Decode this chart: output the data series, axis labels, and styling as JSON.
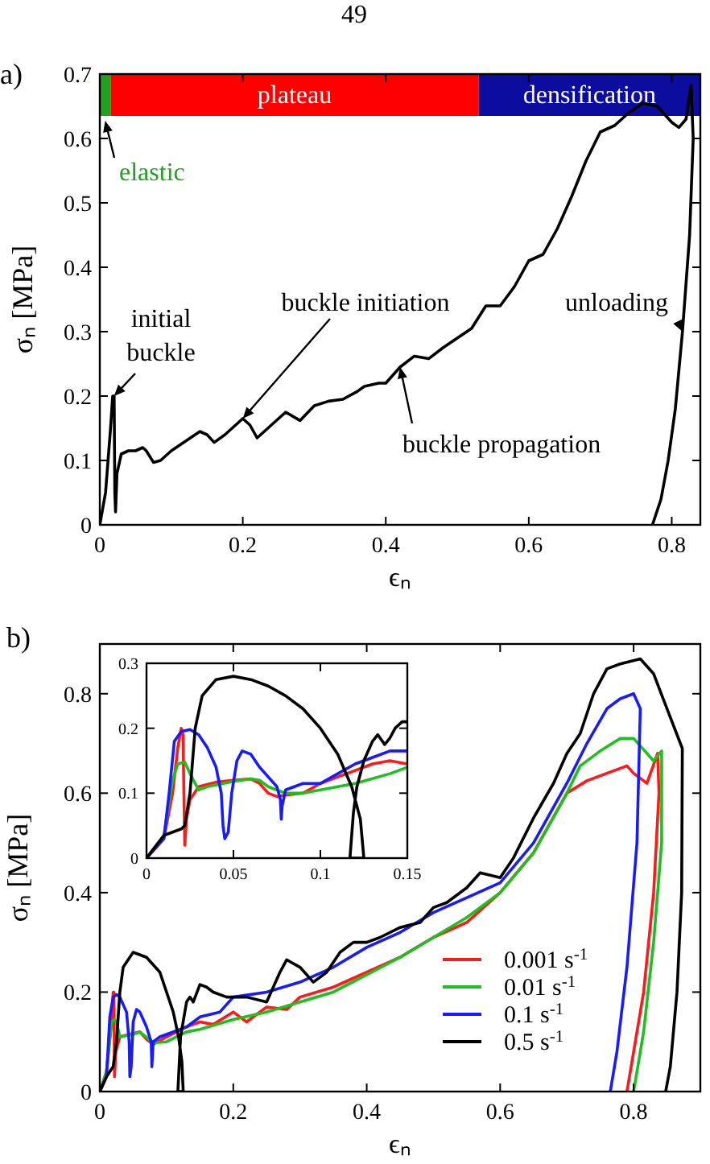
{
  "chart_data": [
    {
      "type": "line",
      "title": "a)",
      "xlabel": "ϵₙ",
      "ylabel": "σₙ [MPa]",
      "xlim": [
        0,
        0.84
      ],
      "ylim": [
        0,
        0.7
      ],
      "xticks": [
        0,
        0.2,
        0.4,
        0.6,
        0.8
      ],
      "yticks": [
        0,
        0.1,
        0.2,
        0.3,
        0.4,
        0.5,
        0.6,
        0.7
      ],
      "grid": false,
      "bands": [
        {
          "axis": "x",
          "from": 0,
          "to": 0.015,
          "label": "elastic",
          "color": "#22a022"
        },
        {
          "axis": "x",
          "from": 0.015,
          "to": 0.53,
          "label": "plateau",
          "color": "#ff0000"
        },
        {
          "axis": "x",
          "from": 0.53,
          "to": 0.84,
          "label": "densification",
          "color": "#0c0c9e"
        }
      ],
      "annotations": [
        {
          "text": "initial buckle",
          "x": 0.02,
          "y": 0.2
        },
        {
          "text": "buckle initiation",
          "x": 0.2,
          "y": 0.165
        },
        {
          "text": "buckle propagation",
          "x": 0.42,
          "y": 0.245
        },
        {
          "text": "unloading",
          "x": 0.815,
          "y": 0.3
        },
        "49"
      ],
      "series": [
        {
          "color": "#000000",
          "x": [
            0,
            0.008,
            0.015,
            0.018,
            0.02,
            0.021,
            0.022,
            0.024,
            0.03,
            0.04,
            0.05,
            0.06,
            0.065,
            0.075,
            0.085,
            0.1,
            0.12,
            0.14,
            0.15,
            0.16,
            0.175,
            0.2,
            0.21,
            0.22,
            0.235,
            0.26,
            0.28,
            0.3,
            0.32,
            0.34,
            0.36,
            0.37,
            0.39,
            0.4,
            0.42,
            0.44,
            0.46,
            0.48,
            0.5,
            0.52,
            0.54,
            0.56,
            0.58,
            0.6,
            0.62,
            0.64,
            0.66,
            0.68,
            0.7,
            0.72,
            0.74,
            0.76,
            0.78,
            0.8,
            0.81,
            0.82,
            0.827,
            0.83,
            0.825,
            0.815,
            0.805,
            0.795,
            0.785,
            0.773
          ],
          "values": [
            0,
            0.05,
            0.15,
            0.2,
            0.2,
            0.05,
            0.02,
            0.08,
            0.11,
            0.115,
            0.115,
            0.12,
            0.115,
            0.097,
            0.1,
            0.115,
            0.13,
            0.145,
            0.14,
            0.128,
            0.14,
            0.165,
            0.155,
            0.135,
            0.15,
            0.175,
            0.162,
            0.185,
            0.192,
            0.195,
            0.207,
            0.215,
            0.22,
            0.22,
            0.245,
            0.262,
            0.258,
            0.275,
            0.29,
            0.305,
            0.34,
            0.34,
            0.37,
            0.41,
            0.42,
            0.46,
            0.51,
            0.565,
            0.61,
            0.62,
            0.64,
            0.655,
            0.65,
            0.625,
            0.617,
            0.63,
            0.683,
            0.6,
            0.45,
            0.3,
            0.18,
            0.1,
            0.04,
            0
          ]
        }
      ]
    },
    {
      "type": "line",
      "title": "b)",
      "xlabel": "ϵₙ",
      "ylabel": "σₙ [MPa]",
      "xlim": [
        0,
        0.9
      ],
      "ylim": [
        0,
        0.9
      ],
      "xticks": [
        0,
        0.2,
        0.4,
        0.6,
        0.8
      ],
      "yticks": [
        0,
        0.2,
        0.4,
        0.6,
        0.8
      ],
      "grid": false,
      "legend": "bottom right",
      "series": [
        {
          "name": "0.001 s$^{-1}$",
          "color": "#ff1a1a",
          "x": [
            0,
            0.01,
            0.018,
            0.02,
            0.021,
            0.022,
            0.024,
            0.03,
            0.05,
            0.06,
            0.07,
            0.08,
            0.1,
            0.13,
            0.15,
            0.17,
            0.2,
            0.22,
            0.25,
            0.28,
            0.3,
            0.35,
            0.4,
            0.45,
            0.5,
            0.55,
            0.6,
            0.65,
            0.7,
            0.73,
            0.76,
            0.79,
            0.8,
            0.82,
            0.836,
            0.838,
            0.83,
            0.815,
            0.8,
            0.79
          ],
          "values": [
            0,
            0.04,
            0.15,
            0.2,
            0.2,
            0.03,
            0.08,
            0.11,
            0.117,
            0.12,
            0.105,
            0.095,
            0.11,
            0.13,
            0.14,
            0.135,
            0.16,
            0.14,
            0.17,
            0.165,
            0.19,
            0.21,
            0.24,
            0.27,
            0.31,
            0.34,
            0.4,
            0.48,
            0.6,
            0.625,
            0.64,
            0.655,
            0.64,
            0.62,
            0.68,
            0.6,
            0.4,
            0.2,
            0.08,
            0
          ]
        },
        {
          "name": "0.01 s$^{-1}$",
          "color": "#1fbf1f",
          "x": [
            0,
            0.01,
            0.018,
            0.022,
            0.025,
            0.03,
            0.05,
            0.06,
            0.08,
            0.1,
            0.13,
            0.15,
            0.2,
            0.25,
            0.3,
            0.35,
            0.4,
            0.45,
            0.5,
            0.55,
            0.6,
            0.65,
            0.7,
            0.72,
            0.75,
            0.78,
            0.8,
            0.82,
            0.83,
            0.842,
            0.842,
            0.83,
            0.815,
            0.8
          ],
          "values": [
            0,
            0.04,
            0.14,
            0.145,
            0.14,
            0.11,
            0.115,
            0.12,
            0.098,
            0.1,
            0.12,
            0.125,
            0.145,
            0.16,
            0.18,
            0.2,
            0.235,
            0.27,
            0.31,
            0.35,
            0.4,
            0.48,
            0.6,
            0.655,
            0.685,
            0.71,
            0.71,
            0.68,
            0.665,
            0.685,
            0.5,
            0.3,
            0.12,
            0
          ]
        },
        {
          "name": "0.1 s$^{-1}$",
          "color": "#1a1aff",
          "x": [
            0,
            0.01,
            0.015,
            0.02,
            0.025,
            0.03,
            0.04,
            0.044,
            0.045,
            0.047,
            0.05,
            0.055,
            0.06,
            0.07,
            0.077,
            0.078,
            0.08,
            0.09,
            0.1,
            0.13,
            0.15,
            0.18,
            0.2,
            0.25,
            0.3,
            0.35,
            0.4,
            0.45,
            0.5,
            0.55,
            0.6,
            0.65,
            0.7,
            0.73,
            0.76,
            0.78,
            0.8,
            0.81,
            0.805,
            0.79,
            0.775,
            0.765
          ],
          "values": [
            0,
            0.03,
            0.15,
            0.19,
            0.195,
            0.19,
            0.16,
            0.1,
            0.03,
            0.05,
            0.14,
            0.165,
            0.16,
            0.13,
            0.1,
            0.05,
            0.1,
            0.11,
            0.115,
            0.13,
            0.15,
            0.16,
            0.19,
            0.2,
            0.22,
            0.25,
            0.29,
            0.32,
            0.36,
            0.39,
            0.42,
            0.5,
            0.62,
            0.7,
            0.77,
            0.79,
            0.8,
            0.77,
            0.5,
            0.25,
            0.08,
            0
          ]
        },
        {
          "name": "0.5 s$^{-1}$",
          "color": "#000000",
          "x": [
            0,
            0.01,
            0.02,
            0.025,
            0.03,
            0.035,
            0.05,
            0.07,
            0.09,
            0.11,
            0.118,
            0.123,
            0.125,
            0.117,
            0.121,
            0.13,
            0.135,
            0.14,
            0.15,
            0.16,
            0.17,
            0.19,
            0.22,
            0.25,
            0.27,
            0.28,
            0.3,
            0.32,
            0.34,
            0.36,
            0.38,
            0.4,
            0.42,
            0.45,
            0.48,
            0.5,
            0.52,
            0.55,
            0.57,
            0.6,
            0.62,
            0.65,
            0.68,
            0.7,
            0.72,
            0.74,
            0.76,
            0.78,
            0.81,
            0.83,
            0.85,
            0.873,
            0.872,
            0.865,
            0.855,
            0.848
          ],
          "values": [
            0,
            0.03,
            0.05,
            0.1,
            0.2,
            0.25,
            0.28,
            0.27,
            0.24,
            0.16,
            0.11,
            0.06,
            0,
            0,
            0.11,
            0.18,
            0.19,
            0.18,
            0.215,
            0.21,
            0.2,
            0.19,
            0.19,
            0.18,
            0.24,
            0.265,
            0.25,
            0.22,
            0.24,
            0.28,
            0.3,
            0.3,
            0.31,
            0.33,
            0.34,
            0.37,
            0.38,
            0.41,
            0.44,
            0.43,
            0.47,
            0.55,
            0.62,
            0.68,
            0.72,
            0.8,
            0.85,
            0.86,
            0.87,
            0.84,
            0.77,
            0.69,
            0.4,
            0.2,
            0.05,
            0
          ]
        }
      ]
    },
    {
      "type": "line",
      "xlim": [
        0,
        0.15
      ],
      "ylim": [
        0,
        0.3
      ],
      "xticks": [
        0,
        0.05,
        0.1,
        0.15
      ],
      "yticks": [
        0,
        0.1,
        0.2,
        0.3
      ],
      "grid": false,
      "series": [
        {
          "color": "#ff1a1a",
          "x": [
            0,
            0.01,
            0.015,
            0.018,
            0.02,
            0.021,
            0.0215,
            0.022,
            0.023,
            0.025,
            0.03,
            0.04,
            0.05,
            0.06,
            0.065,
            0.07,
            0.075,
            0.08,
            0.09,
            0.1,
            0.11,
            0.12,
            0.13,
            0.14,
            0.15
          ],
          "values": [
            0,
            0.03,
            0.1,
            0.17,
            0.2,
            0.19,
            0.1,
            0.02,
            0.06,
            0.09,
            0.11,
            0.117,
            0.12,
            0.122,
            0.115,
            0.1,
            0.095,
            0.097,
            0.1,
            0.115,
            0.125,
            0.135,
            0.145,
            0.15,
            0.145
          ]
        },
        {
          "color": "#1fbf1f",
          "x": [
            0,
            0.01,
            0.015,
            0.018,
            0.022,
            0.025,
            0.03,
            0.035,
            0.05,
            0.06,
            0.065,
            0.07,
            0.08,
            0.09,
            0.1,
            0.12,
            0.14,
            0.15
          ],
          "values": [
            0,
            0.035,
            0.12,
            0.145,
            0.148,
            0.13,
            0.105,
            0.11,
            0.118,
            0.122,
            0.12,
            0.11,
            0.1,
            0.1,
            0.105,
            0.115,
            0.13,
            0.14
          ]
        },
        {
          "color": "#1a1aff",
          "x": [
            0,
            0.01,
            0.013,
            0.016,
            0.02,
            0.025,
            0.03,
            0.035,
            0.04,
            0.043,
            0.044,
            0.045,
            0.047,
            0.049,
            0.052,
            0.055,
            0.06,
            0.065,
            0.07,
            0.075,
            0.077,
            0.0775,
            0.078,
            0.08,
            0.09,
            0.1,
            0.11,
            0.12,
            0.13,
            0.14,
            0.15
          ],
          "values": [
            0,
            0.03,
            0.1,
            0.18,
            0.195,
            0.198,
            0.19,
            0.17,
            0.14,
            0.1,
            0.05,
            0.03,
            0.04,
            0.1,
            0.15,
            0.165,
            0.16,
            0.14,
            0.125,
            0.11,
            0.09,
            0.06,
            0.08,
            0.105,
            0.115,
            0.115,
            0.13,
            0.145,
            0.155,
            0.165,
            0.165
          ]
        },
        {
          "color": "#000000",
          "x": [
            0,
            0.01,
            0.02,
            0.022,
            0.025,
            0.028,
            0.032,
            0.04,
            0.05,
            0.06,
            0.07,
            0.08,
            0.09,
            0.1,
            0.11,
            0.118,
            0.123,
            0.125,
            0.117,
            0.119,
            0.121,
            0.125,
            0.13,
            0.133,
            0.137,
            0.14,
            0.143,
            0.147,
            0.15
          ],
          "values": [
            0,
            0.035,
            0.045,
            0.05,
            0.1,
            0.2,
            0.25,
            0.275,
            0.28,
            0.275,
            0.265,
            0.25,
            0.23,
            0.2,
            0.16,
            0.11,
            0.06,
            0,
            0,
            0.07,
            0.11,
            0.15,
            0.18,
            0.19,
            0.175,
            0.185,
            0.2,
            0.21,
            0.21
          ]
        }
      ]
    }
  ]
}
